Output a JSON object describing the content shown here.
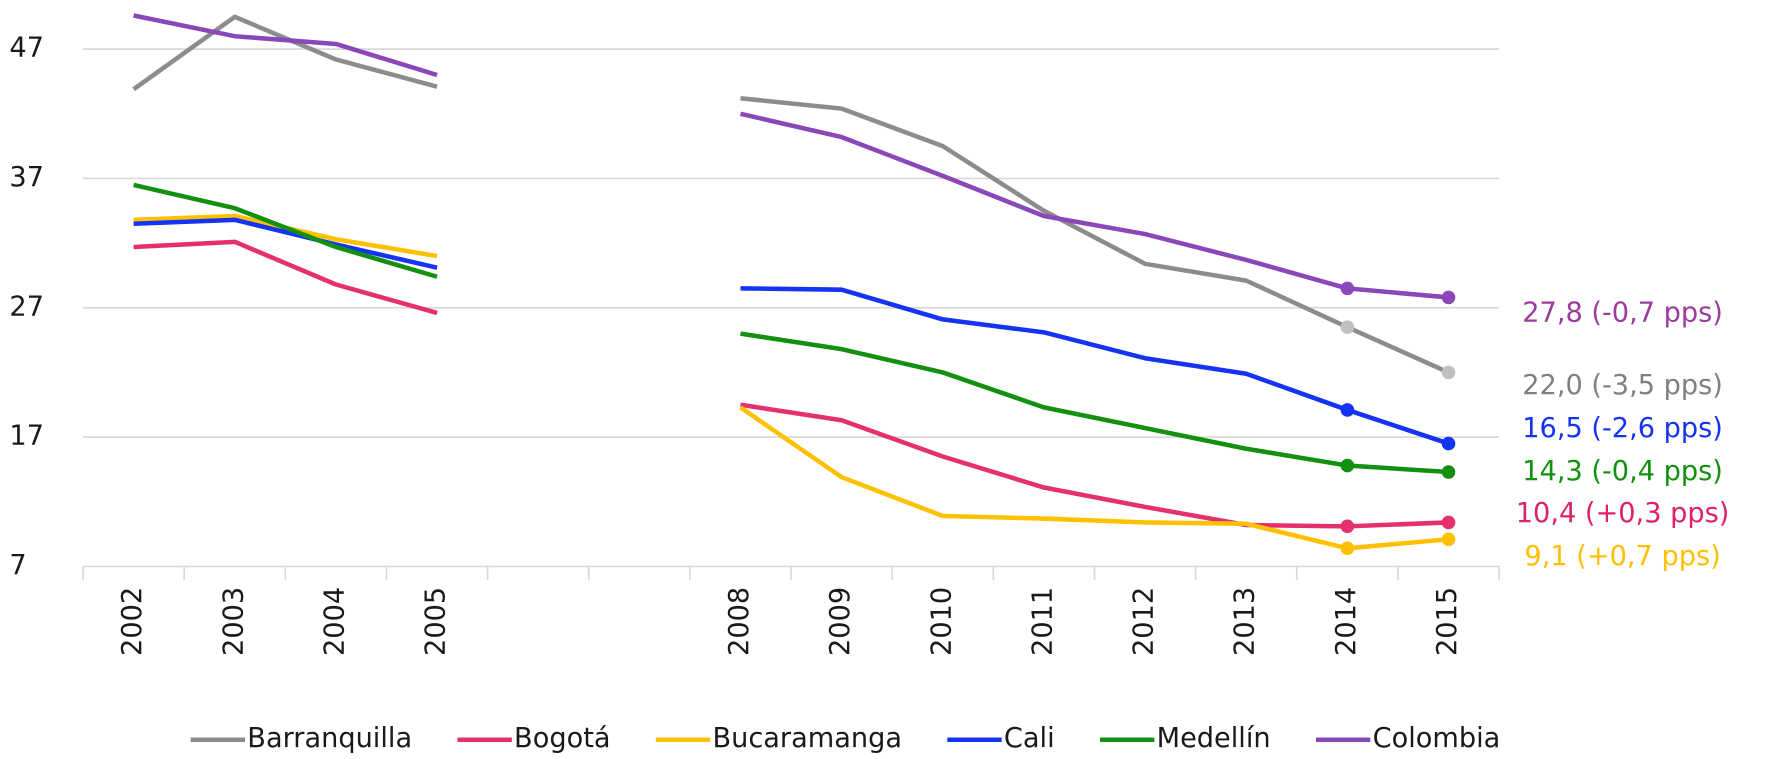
{
  "chart_data": {
    "type": "line",
    "categories": [
      "2002",
      "2003",
      "2004",
      "2005",
      null,
      null,
      "2008",
      "2009",
      "2010",
      "2011",
      "2012",
      "2013",
      "2014",
      "2015"
    ],
    "ylim": [
      7,
      50.8
    ],
    "yticks": [
      7,
      17,
      27,
      37,
      47
    ],
    "grid": true,
    "legend": "bottom",
    "series": [
      {
        "name": "Barranquilla",
        "color": "#8c8c8c",
        "marker_color": "#c0c0c0",
        "label_color": "#808080",
        "end_label": "22,0 (-3,5 pps)",
        "values": [
          43.9,
          49.5,
          46.2,
          44.1,
          null,
          null,
          43.2,
          42.4,
          39.5,
          34.5,
          30.4,
          29.1,
          25.5,
          22.0
        ]
      },
      {
        "name": "Bogotá",
        "color": "#e5306f",
        "marker_color": "#e5306f",
        "label_color": "#e0206a",
        "end_label": "10,4 (+0,3 pps)",
        "values": [
          31.7,
          32.1,
          28.8,
          26.6,
          null,
          null,
          19.5,
          18.3,
          15.5,
          13.1,
          11.6,
          10.2,
          10.1,
          10.4
        ]
      },
      {
        "name": "Bucaramanga",
        "color": "#ffc000",
        "marker_color": "#ffc000",
        "label_color": "#ffc000",
        "end_label": "9,1 (+0,7 pps)",
        "values": [
          33.8,
          34.1,
          32.3,
          31.0,
          null,
          null,
          19.3,
          13.9,
          10.9,
          10.7,
          10.4,
          10.3,
          8.4,
          9.1
        ]
      },
      {
        "name": "Cali",
        "color": "#1433f5",
        "marker_color": "#1433f5",
        "label_color": "#1433f5",
        "end_label": "16,5 (-2,6 pps)",
        "values": [
          33.5,
          33.8,
          31.9,
          30.1,
          null,
          null,
          28.5,
          28.4,
          26.1,
          25.1,
          23.1,
          21.9,
          19.1,
          16.5
        ]
      },
      {
        "name": "Medellín",
        "color": "#13900f",
        "marker_color": "#13900f",
        "label_color": "#13900f",
        "end_label": "14,3 (-0,4 pps)",
        "values": [
          36.5,
          34.7,
          31.7,
          29.4,
          null,
          null,
          25.0,
          23.8,
          22.0,
          19.3,
          17.7,
          16.1,
          14.8,
          14.3
        ]
      },
      {
        "name": "Colombia",
        "color": "#8a47b8",
        "marker_color": "#8a47b8",
        "label_color": "#9b3c9b",
        "end_label": "27,8 (-0,7 pps)",
        "values": [
          49.6,
          48.0,
          47.4,
          45.0,
          null,
          null,
          42.0,
          40.2,
          37.2,
          34.1,
          32.7,
          30.7,
          28.5,
          27.8
        ]
      }
    ]
  }
}
